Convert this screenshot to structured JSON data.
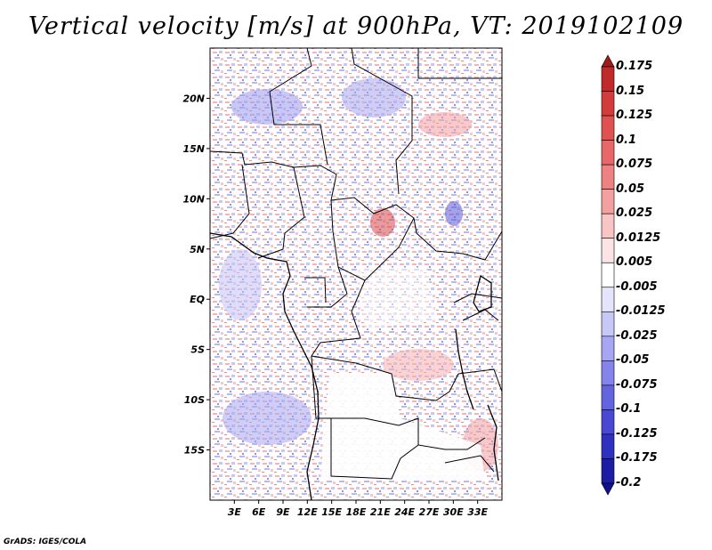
{
  "title": "Vertical velocity [m/s] at 900hPa, VT: 2019102109",
  "footer": "GrADS: IGES/COLA",
  "map": {
    "lon_range": [
      0,
      36
    ],
    "lat_range": [
      -20,
      25
    ],
    "lat_ticks": [
      {
        "value": 20,
        "label": "20N"
      },
      {
        "value": 15,
        "label": "15N"
      },
      {
        "value": 10,
        "label": "10N"
      },
      {
        "value": 5,
        "label": "5N"
      },
      {
        "value": 0,
        "label": "EQ"
      },
      {
        "value": -5,
        "label": "5S"
      },
      {
        "value": -10,
        "label": "10S"
      },
      {
        "value": -15,
        "label": "15S"
      }
    ],
    "lon_ticks": [
      {
        "value": 3,
        "label": "3E"
      },
      {
        "value": 6,
        "label": "6E"
      },
      {
        "value": 9,
        "label": "9E"
      },
      {
        "value": 12,
        "label": "12E"
      },
      {
        "value": 15,
        "label": "15E"
      },
      {
        "value": 18,
        "label": "18E"
      },
      {
        "value": 21,
        "label": "21E"
      },
      {
        "value": 24,
        "label": "24E"
      },
      {
        "value": 27,
        "label": "27E"
      },
      {
        "value": 30,
        "label": "30E"
      },
      {
        "value": 33,
        "label": "33E"
      }
    ]
  },
  "colorbar": {
    "labels": [
      "0.175",
      "0.15",
      "0.125",
      "0.1",
      "0.075",
      "0.05",
      "0.025",
      "0.0125",
      "0.005",
      "-0.005",
      "-0.0125",
      "-0.025",
      "-0.05",
      "-0.075",
      "-0.1",
      "-0.125",
      "-0.175",
      "-0.2"
    ],
    "colors": [
      "#a01c1c",
      "#c02a2a",
      "#d43c3c",
      "#e05252",
      "#e86868",
      "#ee8282",
      "#f4a0a0",
      "#f8c4c4",
      "#fce4e4",
      "#ffffff",
      "#e4e4fc",
      "#c8c8f8",
      "#a6a6f2",
      "#8484ea",
      "#6464e0",
      "#4848d4",
      "#3030c0",
      "#1c1ca4",
      "#10108a"
    ]
  }
}
